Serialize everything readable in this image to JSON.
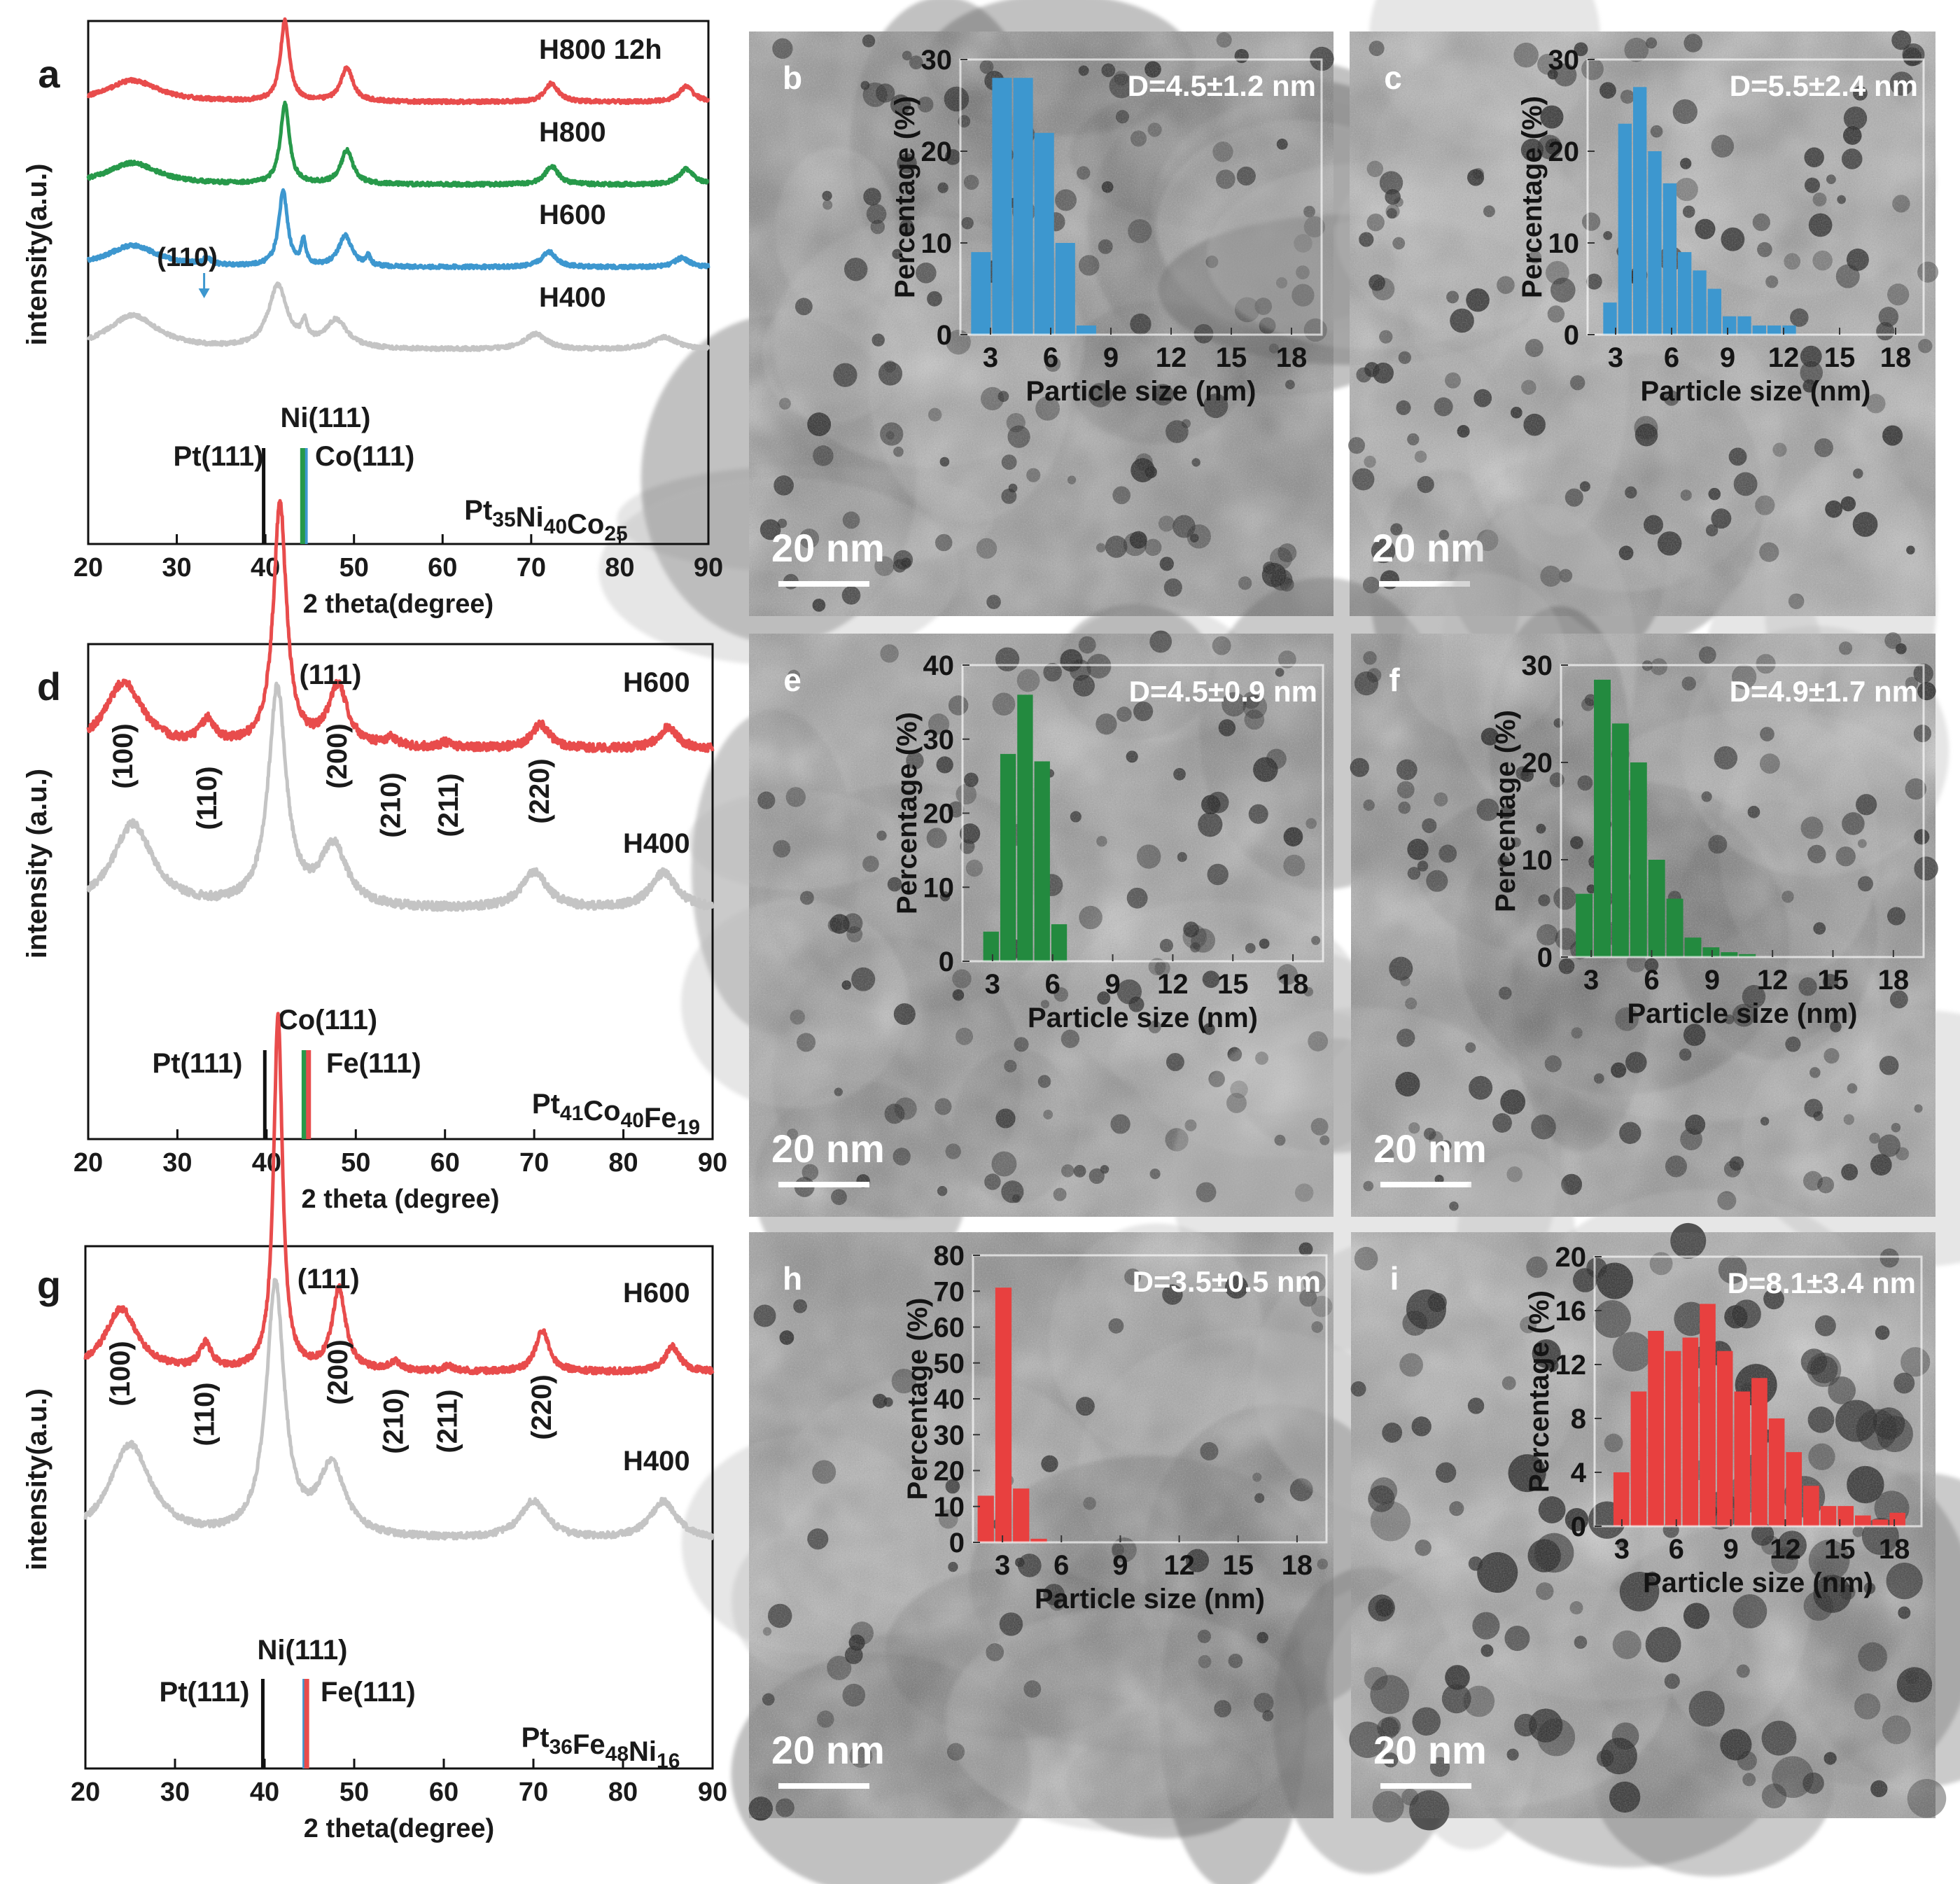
{
  "figure": {
    "panel_letters": [
      "a",
      "b",
      "c",
      "d",
      "e",
      "f",
      "g",
      "h",
      "i"
    ]
  },
  "colors": {
    "red": "#e84c4c",
    "green": "#27994a",
    "blue": "#3d97cf",
    "gray": "#c4c4c4",
    "black": "#111111",
    "hist_blue": "#3d97cf",
    "hist_green": "#238a3f",
    "hist_red": "#e8403f"
  },
  "chart_data": [
    {
      "id": "a",
      "type": "line",
      "title": "",
      "xlabel": "2 theta(degree)",
      "ylabel": "intensity(a.u.)",
      "xlim": [
        20,
        90
      ],
      "xticks": [
        20,
        30,
        40,
        50,
        60,
        70,
        80,
        90
      ],
      "series": [
        {
          "name": "H800 12h",
          "color": "red",
          "offset": 3,
          "peaks": [
            [
              25,
              0.35,
              3.5
            ],
            [
              42.2,
              1.3,
              0.6
            ],
            [
              49.2,
              0.55,
              0.8
            ],
            [
              72.3,
              0.3,
              0.9
            ],
            [
              87.5,
              0.25,
              1
            ]
          ]
        },
        {
          "name": "H800",
          "color": "green",
          "offset": 2,
          "peaks": [
            [
              25,
              0.35,
              3.5
            ],
            [
              42.2,
              1.3,
              0.6
            ],
            [
              49.2,
              0.55,
              0.8
            ],
            [
              72.3,
              0.3,
              0.9
            ],
            [
              87.5,
              0.25,
              1
            ]
          ]
        },
        {
          "name": "H600",
          "color": "blue",
          "offset": 1,
          "peaks": [
            [
              25,
              0.35,
              3.5
            ],
            [
              33.4,
              0.1,
              0.6
            ],
            [
              42,
              1.2,
              0.6
            ],
            [
              44.3,
              0.4,
              0.3
            ],
            [
              49,
              0.5,
              0.9
            ],
            [
              51.6,
              0.15,
              0.3
            ],
            [
              72,
              0.25,
              1
            ],
            [
              87,
              0.15,
              1
            ]
          ]
        },
        {
          "name": "H400",
          "color": "gray",
          "offset": 0,
          "peaks": [
            [
              25,
              0.55,
              3.5
            ],
            [
              41.4,
              1.0,
              1.3
            ],
            [
              44.4,
              0.3,
              0.4
            ],
            [
              48,
              0.45,
              1.5
            ],
            [
              70.5,
              0.25,
              1.5
            ],
            [
              85,
              0.2,
              1.8
            ]
          ]
        }
      ],
      "annotations": [
        {
          "text": "(110)",
          "x": 33.4
        }
      ],
      "references": [
        {
          "label": "Pt(111)",
          "x": 39.8,
          "color": "black"
        },
        {
          "label": "Ni(111)",
          "x": 44.5,
          "color": "blue"
        },
        {
          "label": "Co(111)",
          "x": 44.2,
          "color": "green"
        }
      ],
      "composition": {
        "parts": [
          [
            "Pt",
            "35"
          ],
          [
            "Ni",
            "40"
          ],
          [
            "Co",
            "25"
          ]
        ]
      }
    },
    {
      "id": "d",
      "type": "line",
      "title": "",
      "xlabel": "2 theta (degree)",
      "ylabel": "intensity (a.u.)",
      "xlim": [
        20,
        90
      ],
      "xticks": [
        20,
        30,
        40,
        50,
        60,
        70,
        80,
        90
      ],
      "series": [
        {
          "name": "H600",
          "color": "red",
          "offset": 1,
          "peaks": [
            [
              24,
              0.55,
              2.5
            ],
            [
              33.4,
              0.2,
              1
            ],
            [
              41.5,
              2.0,
              0.9
            ],
            [
              48,
              0.5,
              1.3
            ],
            [
              54,
              0.07,
              0.8
            ],
            [
              60,
              0.04,
              0.8
            ],
            [
              70.7,
              0.2,
              1.2
            ],
            [
              85,
              0.18,
              1.2
            ]
          ]
        },
        {
          "name": "H400",
          "color": "gray",
          "offset": 0,
          "peaks": [
            [
              25,
              0.7,
              2.8
            ],
            [
              41.2,
              1.8,
              1.2
            ],
            [
              47.5,
              0.5,
              1.8
            ],
            [
              70,
              0.3,
              1.8
            ],
            [
              84.5,
              0.3,
              1.8
            ]
          ]
        }
      ],
      "hkl": [
        {
          "text": "(100)",
          "x": 24
        },
        {
          "text": "(110)",
          "x": 33.4
        },
        {
          "text": "(111)",
          "x": 41.5
        },
        {
          "text": "(200)",
          "x": 48
        },
        {
          "text": "(210)",
          "x": 54
        },
        {
          "text": "(211)",
          "x": 60.5
        },
        {
          "text": "(220)",
          "x": 70.7
        }
      ],
      "references": [
        {
          "label": "Pt(111)",
          "x": 39.8,
          "color": "black"
        },
        {
          "label": "Co(111)",
          "x": 44.2,
          "color": "green"
        },
        {
          "label": "Fe(111)",
          "x": 44.7,
          "color": "red"
        }
      ],
      "composition": {
        "parts": [
          [
            "Pt",
            "41"
          ],
          [
            "Co",
            "40"
          ],
          [
            "Fe",
            "19"
          ]
        ]
      }
    },
    {
      "id": "g",
      "type": "line",
      "title": "",
      "xlabel": "2 theta(degree)",
      "ylabel": "intensity(a.u.)",
      "xlim": [
        20,
        90
      ],
      "xticks": [
        20,
        30,
        40,
        50,
        60,
        70,
        80,
        90
      ],
      "series": [
        {
          "name": "H600",
          "color": "red",
          "offset": 1,
          "peaks": [
            [
              24,
              0.5,
              2.2
            ],
            [
              33.4,
              0.2,
              0.8
            ],
            [
              41.5,
              2.8,
              0.6
            ],
            [
              48.3,
              0.65,
              0.9
            ],
            [
              54.5,
              0.07,
              0.7
            ],
            [
              60.5,
              0.04,
              0.7
            ],
            [
              71,
              0.33,
              0.9
            ],
            [
              85.5,
              0.2,
              1
            ]
          ]
        },
        {
          "name": "H400",
          "color": "gray",
          "offset": 0,
          "peaks": [
            [
              25,
              0.75,
              2.8
            ],
            [
              41.2,
              2.0,
              1.2
            ],
            [
              47.5,
              0.55,
              1.8
            ],
            [
              70,
              0.3,
              1.8
            ],
            [
              84.5,
              0.3,
              1.8
            ]
          ]
        }
      ],
      "hkl": [
        {
          "text": "(100)",
          "x": 24
        },
        {
          "text": "(110)",
          "x": 33.4
        },
        {
          "text": "(111)",
          "x": 41.5
        },
        {
          "text": "(200)",
          "x": 48.3
        },
        {
          "text": "(210)",
          "x": 54.5
        },
        {
          "text": "(211)",
          "x": 60.5
        },
        {
          "text": "(220)",
          "x": 71
        }
      ],
      "references": [
        {
          "label": "Pt(111)",
          "x": 39.8,
          "color": "black"
        },
        {
          "label": "Ni(111)",
          "x": 44.5,
          "color": "blue"
        },
        {
          "label": "Fe(111)",
          "x": 44.7,
          "color": "red"
        }
      ],
      "composition": {
        "parts": [
          [
            "Pt",
            "36"
          ],
          [
            "Fe",
            "48"
          ],
          [
            "Ni",
            "16"
          ]
        ]
      }
    },
    {
      "id": "b",
      "type": "bar",
      "xlabel": "Particle size (nm)",
      "ylabel": "Percentage (%)",
      "ylim": [
        0,
        30
      ],
      "yticks": [
        0,
        10,
        20,
        30
      ],
      "xticks": [
        3,
        6,
        9,
        12,
        15,
        18
      ],
      "bin_start": 2,
      "bin_width": 1.05,
      "color": "hist_blue",
      "values": [
        9,
        28,
        28,
        22,
        10,
        1
      ],
      "stat": "D=4.5±1.2 nm"
    },
    {
      "id": "c",
      "type": "bar",
      "xlabel": "Particle size (nm)",
      "ylabel": "Percentage (%)",
      "ylim": [
        0,
        30
      ],
      "yticks": [
        0,
        10,
        20,
        30
      ],
      "xticks": [
        3,
        6,
        9,
        12,
        15,
        18
      ],
      "bin_start": 2.3,
      "bin_width": 0.8,
      "color": "hist_blue",
      "values": [
        3.5,
        23,
        27,
        20,
        16.5,
        9,
        7,
        5,
        2,
        2,
        1,
        1,
        1
      ],
      "stat": "D=5.5±2.4 nm"
    },
    {
      "id": "e",
      "type": "bar",
      "xlabel": "Particle size (nm)",
      "ylabel": "Percentage (%)",
      "ylim": [
        0,
        40
      ],
      "yticks": [
        0,
        10,
        20,
        30,
        40
      ],
      "xticks": [
        3,
        6,
        9,
        12,
        15,
        18
      ],
      "bin_start": 2.5,
      "bin_width": 0.85,
      "color": "hist_green",
      "values": [
        4,
        28,
        36,
        27,
        5
      ],
      "stat": "D=4.5±0.9 nm"
    },
    {
      "id": "f",
      "type": "bar",
      "xlabel": "Particle size (nm)",
      "ylabel": "Percentage (%)",
      "ylim": [
        0,
        30
      ],
      "yticks": [
        0,
        10,
        20,
        30
      ],
      "xticks": [
        3,
        6,
        9,
        12,
        15,
        18
      ],
      "bin_start": 2.2,
      "bin_width": 0.9,
      "color": "hist_green",
      "values": [
        6.5,
        28.5,
        24,
        20,
        10,
        6,
        2,
        1,
        0.5,
        0.3
      ],
      "stat": "D=4.9±1.7 nm"
    },
    {
      "id": "h",
      "type": "bar",
      "xlabel": "Particle size (nm)",
      "ylabel": "Percentage (%)",
      "ylim": [
        0,
        80
      ],
      "yticks": [
        0,
        10,
        20,
        30,
        40,
        50,
        60,
        70,
        80
      ],
      "xticks": [
        3,
        6,
        9,
        12,
        15,
        18
      ],
      "bin_start": 1.7,
      "bin_width": 0.9,
      "color": "hist_red",
      "values": [
        13,
        71,
        15,
        1
      ],
      "stat": "D=3.5±0.5 nm"
    },
    {
      "id": "i",
      "type": "bar",
      "xlabel": "Particle size (nm)",
      "ylabel": "Percentage (%)",
      "ylim": [
        0,
        20
      ],
      "yticks": [
        0,
        4,
        8,
        12,
        16,
        20
      ],
      "xticks": [
        3,
        6,
        9,
        12,
        15,
        18
      ],
      "bin_start": 2.5,
      "bin_width": 0.95,
      "color": "hist_red",
      "values": [
        4,
        10,
        14.5,
        13,
        14,
        16.5,
        13,
        10,
        11,
        8,
        5.5,
        3,
        1.5,
        1.5,
        0.8,
        0.5,
        1
      ],
      "stat": "D=8.1±3.4 nm"
    }
  ],
  "tem": [
    {
      "id": "b",
      "scale_bar": "20 nm",
      "tone": "dark"
    },
    {
      "id": "c",
      "scale_bar": "20 nm",
      "tone": "mid"
    },
    {
      "id": "e",
      "scale_bar": "20 nm",
      "tone": "light"
    },
    {
      "id": "f",
      "scale_bar": "20 nm",
      "tone": "dark"
    },
    {
      "id": "h",
      "scale_bar": "20 nm",
      "tone": "dark"
    },
    {
      "id": "i",
      "scale_bar": "20 nm",
      "tone": "light"
    }
  ]
}
